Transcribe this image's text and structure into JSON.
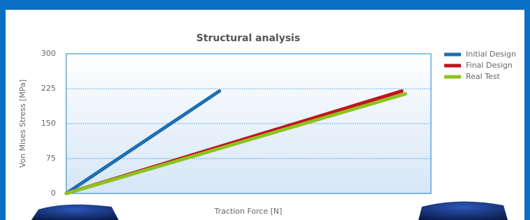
{
  "chart_data": {
    "type": "line",
    "title": "Structural analysis",
    "x_label": "Traction Force [N]",
    "y_label": "Von Mises Stress [MPa]",
    "xlim": [
      0,
      100
    ],
    "ylim": [
      0,
      300
    ],
    "yticks": [
      0,
      75,
      150,
      225,
      300
    ],
    "grid": true,
    "series": [
      {
        "name": "Initial Design",
        "color": "#1f6fb2",
        "x": [
          0,
          42
        ],
        "values": [
          0,
          220
        ]
      },
      {
        "name": "Final Design",
        "color": "#c0141c",
        "x": [
          0,
          92
        ],
        "values": [
          0,
          220
        ]
      },
      {
        "name": "Real Test",
        "color": "#8dc21f",
        "x": [
          0,
          93
        ],
        "values": [
          0,
          214
        ]
      }
    ]
  }
}
